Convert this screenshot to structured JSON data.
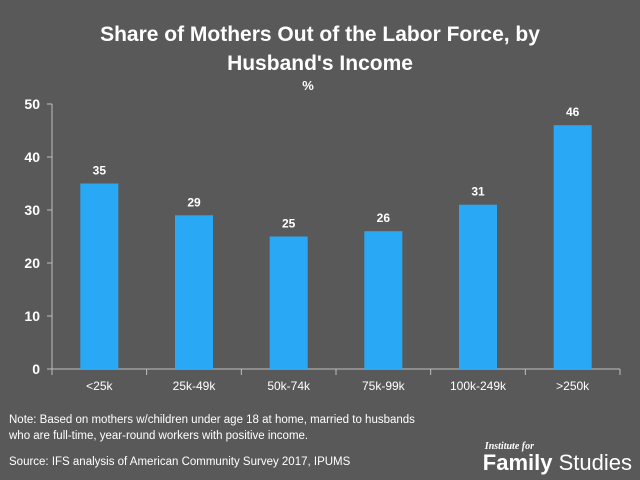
{
  "title_lines": [
    "Share of Mothers Out of the Labor Force, by",
    "Husband's Income"
  ],
  "unit": "%",
  "note_lines": [
    "Note: Based on mothers w/children under age 18 at home, married to husbands",
    "who are full-time, year-round workers with positive income."
  ],
  "source": "Source: IFS analysis of American Community Survey 2017, IPUMS",
  "logo": {
    "small": "Institute for",
    "bold": "Family",
    "regular": " Studies"
  },
  "colors": {
    "background": "#595959",
    "bar": "#29a8f5",
    "text": "#ffffff",
    "axis": "#bfbfbf"
  },
  "chart_data": {
    "type": "bar",
    "categories": [
      "<25k",
      "25k-49k",
      "50k-74k",
      "75k-99k",
      "100k-249k",
      ">250k"
    ],
    "values": [
      35,
      29,
      25,
      26,
      31,
      46
    ],
    "data_labels": [
      "35",
      "29",
      "25",
      "26",
      "31",
      "46"
    ],
    "ylim": [
      0,
      50
    ],
    "yticks": [
      0,
      10,
      20,
      30,
      40,
      50
    ],
    "ylabel": "%",
    "grid": false
  }
}
